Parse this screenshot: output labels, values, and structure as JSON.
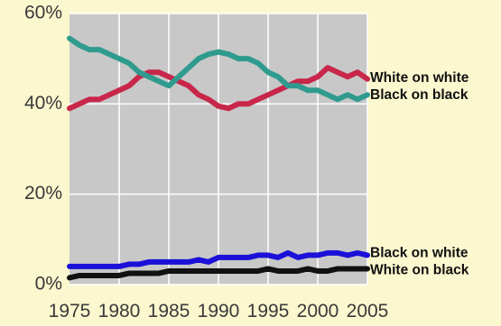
{
  "chart_data": {
    "type": "line",
    "x": [
      1975,
      1976,
      1977,
      1978,
      1979,
      1980,
      1981,
      1982,
      1983,
      1984,
      1985,
      1986,
      1987,
      1988,
      1989,
      1990,
      1991,
      1992,
      1993,
      1994,
      1995,
      1996,
      1997,
      1998,
      1999,
      2000,
      2001,
      2002,
      2003,
      2004,
      2005
    ],
    "xlim": [
      1975,
      2005
    ],
    "ylim": [
      0,
      60
    ],
    "x_ticks": [
      {
        "value": 1975,
        "label": "1975"
      },
      {
        "value": 1980,
        "label": "1980"
      },
      {
        "value": 1985,
        "label": "1985"
      },
      {
        "value": 1990,
        "label": "1990"
      },
      {
        "value": 1995,
        "label": "1995"
      },
      {
        "value": 2000,
        "label": "2000"
      },
      {
        "value": 2005,
        "label": "2005"
      }
    ],
    "y_ticks": [
      {
        "value": 0,
        "label": "0%"
      },
      {
        "value": 20,
        "label": "20%"
      },
      {
        "value": 40,
        "label": "40%"
      },
      {
        "value": 60,
        "label": "60%"
      }
    ],
    "grid": true,
    "plot_background": "#c8c8c8",
    "series": [
      {
        "name": "White on white",
        "color": "#c8264a",
        "values": [
          39,
          40,
          41,
          41,
          42,
          43,
          44,
          46,
          47,
          47,
          46,
          45,
          44,
          42,
          41,
          39.5,
          39,
          40,
          40,
          41,
          42,
          43,
          44,
          45,
          45,
          46,
          48,
          47,
          46,
          47,
          45.5
        ]
      },
      {
        "name": "Black on black",
        "color": "#2f9b8e",
        "values": [
          54.5,
          53,
          52,
          52,
          51,
          50,
          49,
          47,
          46,
          45,
          44,
          46,
          48,
          50,
          51,
          51.5,
          51,
          50,
          50,
          49,
          47,
          46,
          44,
          44,
          43,
          43,
          42,
          41,
          42,
          41,
          42
        ]
      },
      {
        "name": "Black on white",
        "color": "#1a10d8",
        "values": [
          4,
          4,
          4,
          4,
          4,
          4,
          4.5,
          4.5,
          5,
          5,
          5,
          5,
          5,
          5.5,
          5,
          6,
          6,
          6,
          6,
          6.5,
          6.5,
          6,
          7,
          6,
          6.5,
          6.5,
          7,
          7,
          6.5,
          7,
          6.5
        ]
      },
      {
        "name": "White on black",
        "color": "#111111",
        "values": [
          1.5,
          2,
          2,
          2,
          2,
          2,
          2.5,
          2.5,
          2.5,
          2.5,
          3,
          3,
          3,
          3,
          3,
          3,
          3,
          3,
          3,
          3,
          3.5,
          3,
          3,
          3,
          3.5,
          3,
          3,
          3.5,
          3.5,
          3.5,
          3.5
        ]
      }
    ]
  }
}
